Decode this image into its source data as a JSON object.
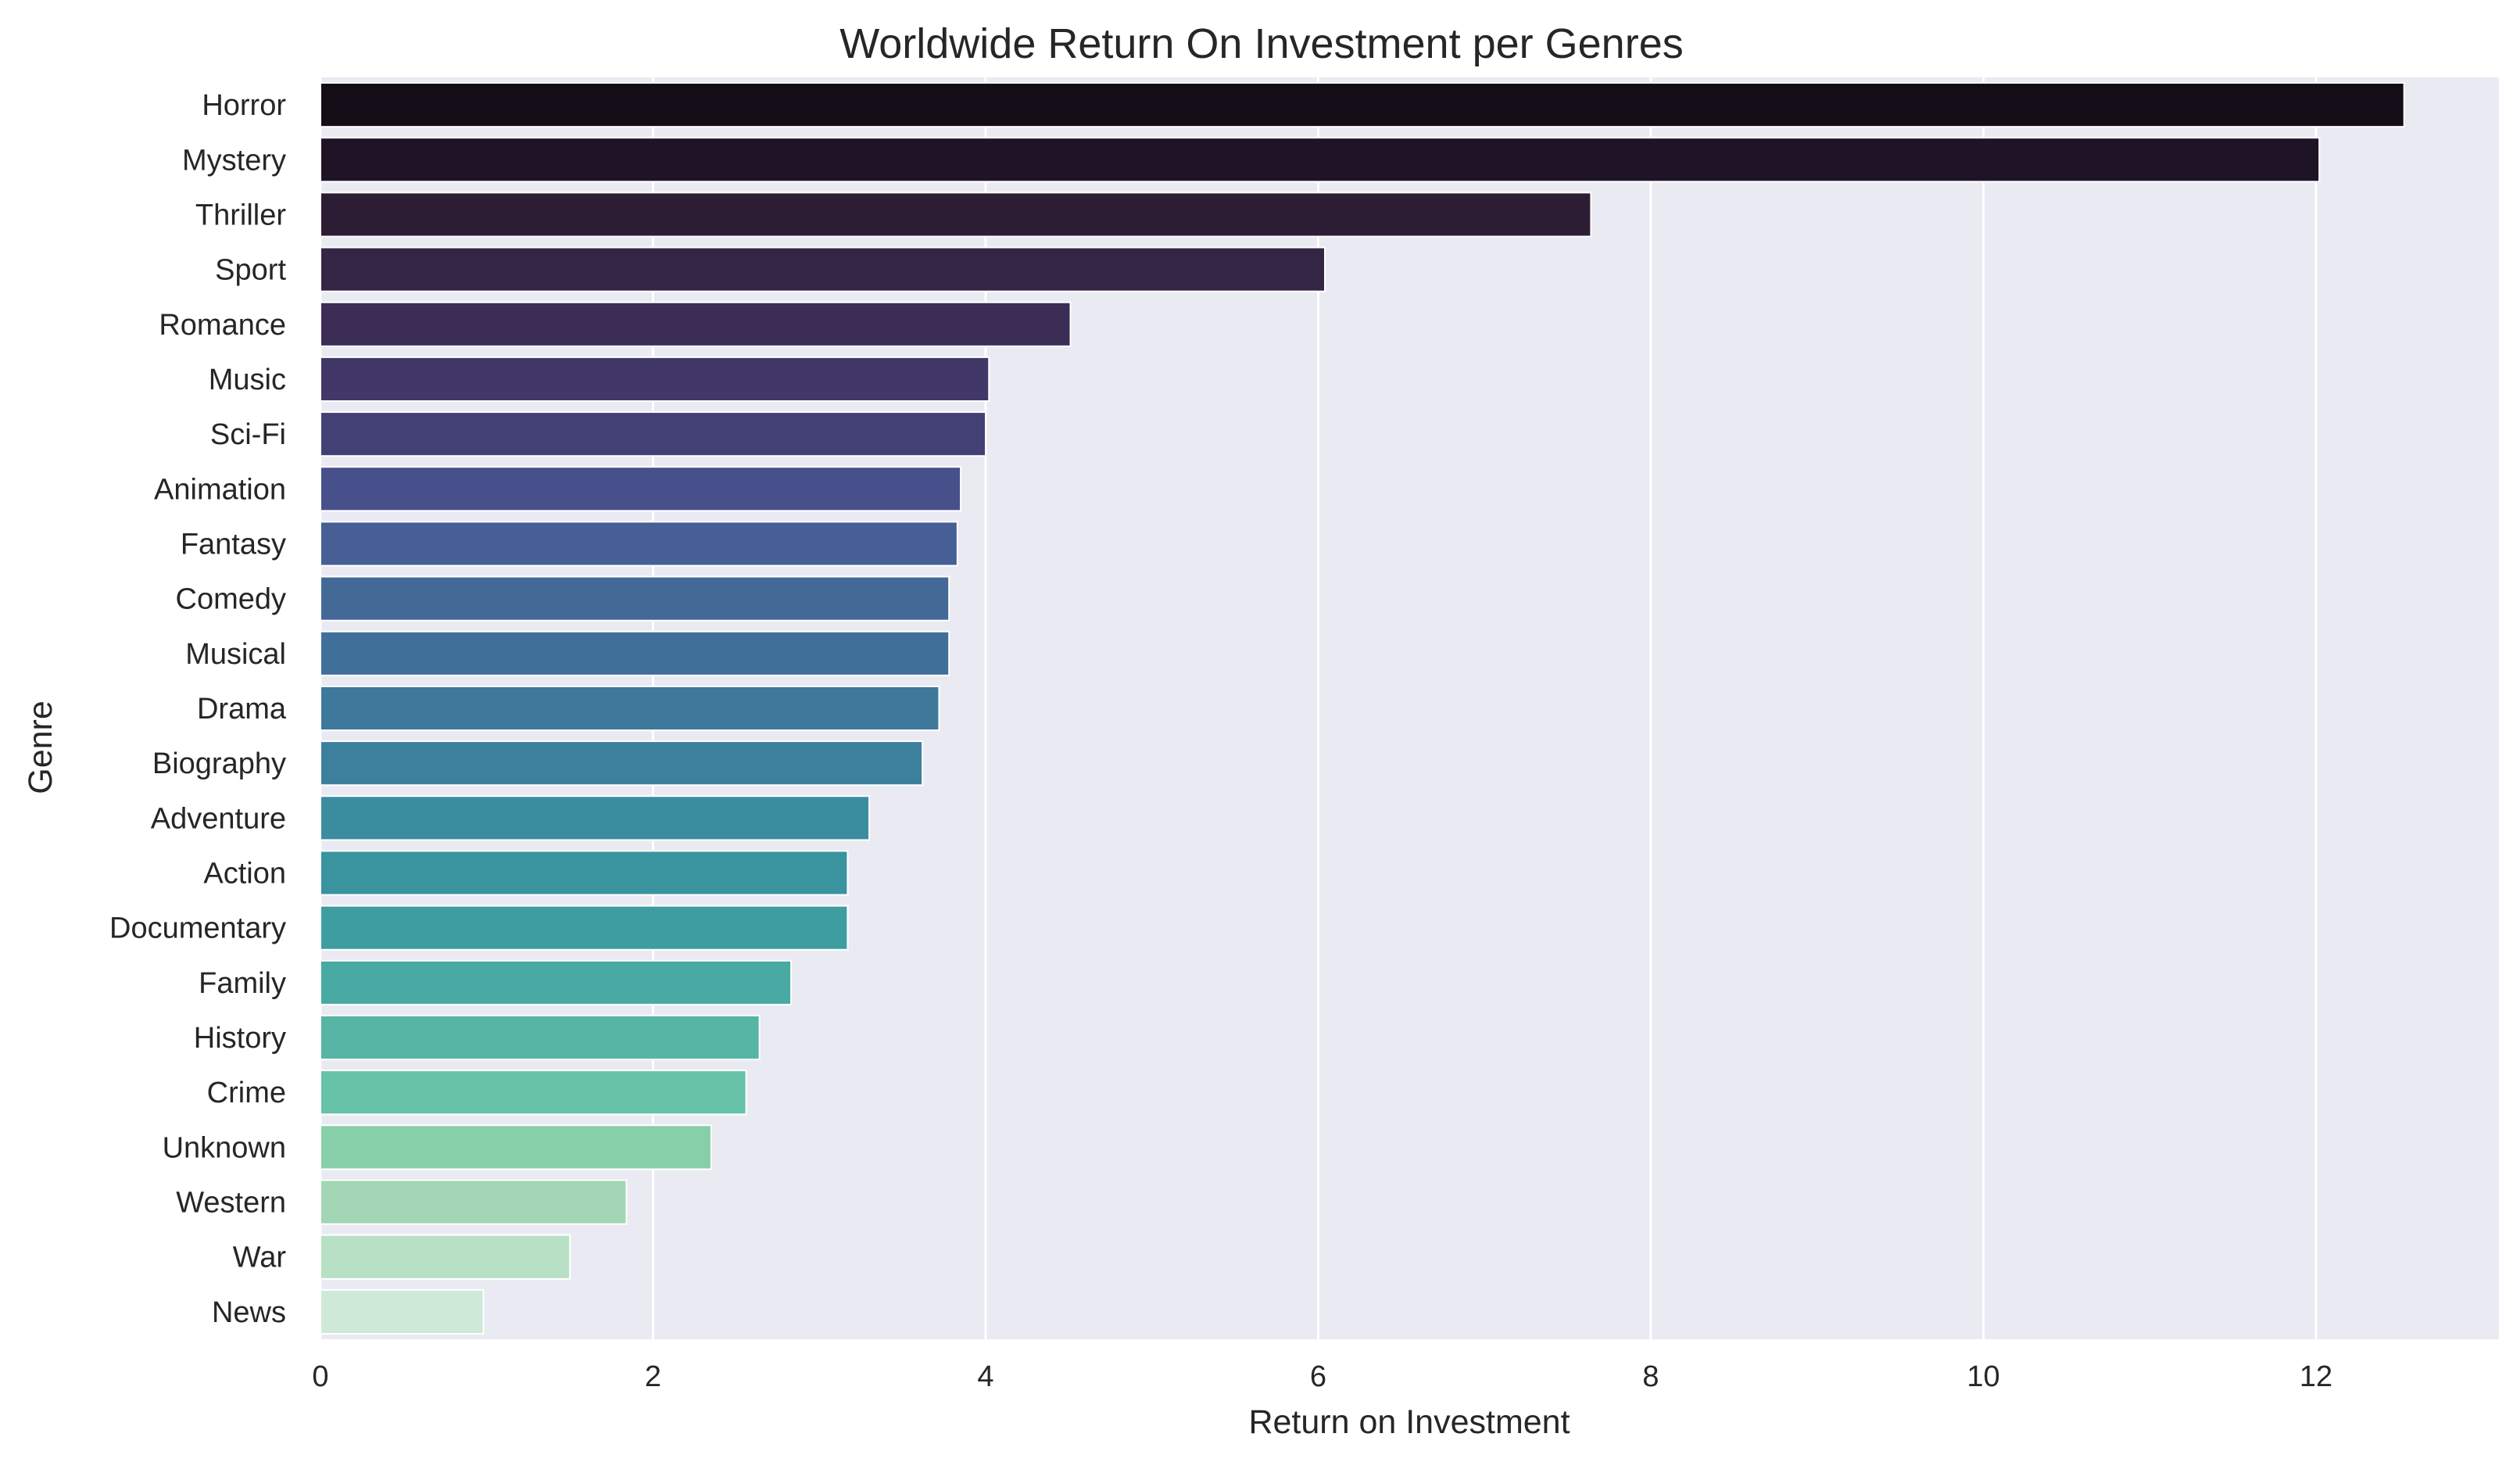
{
  "chart_data": {
    "type": "bar",
    "orientation": "horizontal",
    "title": "Worldwide Return On Investment per Genres",
    "xlabel": "Return on Investment",
    "ylabel": "Genre",
    "xlim": [
      0,
      13.1
    ],
    "xticks": [
      0,
      2,
      4,
      6,
      8,
      10,
      12
    ],
    "grid": true,
    "legend": "none",
    "categories": [
      "Horror",
      "Mystery",
      "Thriller",
      "Sport",
      "Romance",
      "Music",
      "Sci-Fi",
      "Animation",
      "Fantasy",
      "Comedy",
      "Musical",
      "Drama",
      "Biography",
      "Adventure",
      "Action",
      "Documentary",
      "Family",
      "History",
      "Crime",
      "Unknown",
      "Western",
      "War",
      "News"
    ],
    "values": [
      12.53,
      12.02,
      7.64,
      6.04,
      4.51,
      4.02,
      4.0,
      3.85,
      3.83,
      3.78,
      3.78,
      3.72,
      3.62,
      3.3,
      3.17,
      3.17,
      2.83,
      2.64,
      2.56,
      2.35,
      1.84,
      1.5,
      0.98
    ],
    "colors": [
      "#140c16",
      "#1f1425",
      "#2c1d34",
      "#352545",
      "#3c2d56",
      "#413867",
      "#434075",
      "#47508a",
      "#465f94",
      "#436996",
      "#406f99",
      "#3e789b",
      "#3c809e",
      "#3a8d9f",
      "#3994a0",
      "#3d9da1",
      "#48aaa2",
      "#56b5a4",
      "#67c3a7",
      "#86cfa8",
      "#a2d6b4",
      "#b7e0c5",
      "#cee9d8"
    ],
    "background": "#eaeaf2"
  }
}
